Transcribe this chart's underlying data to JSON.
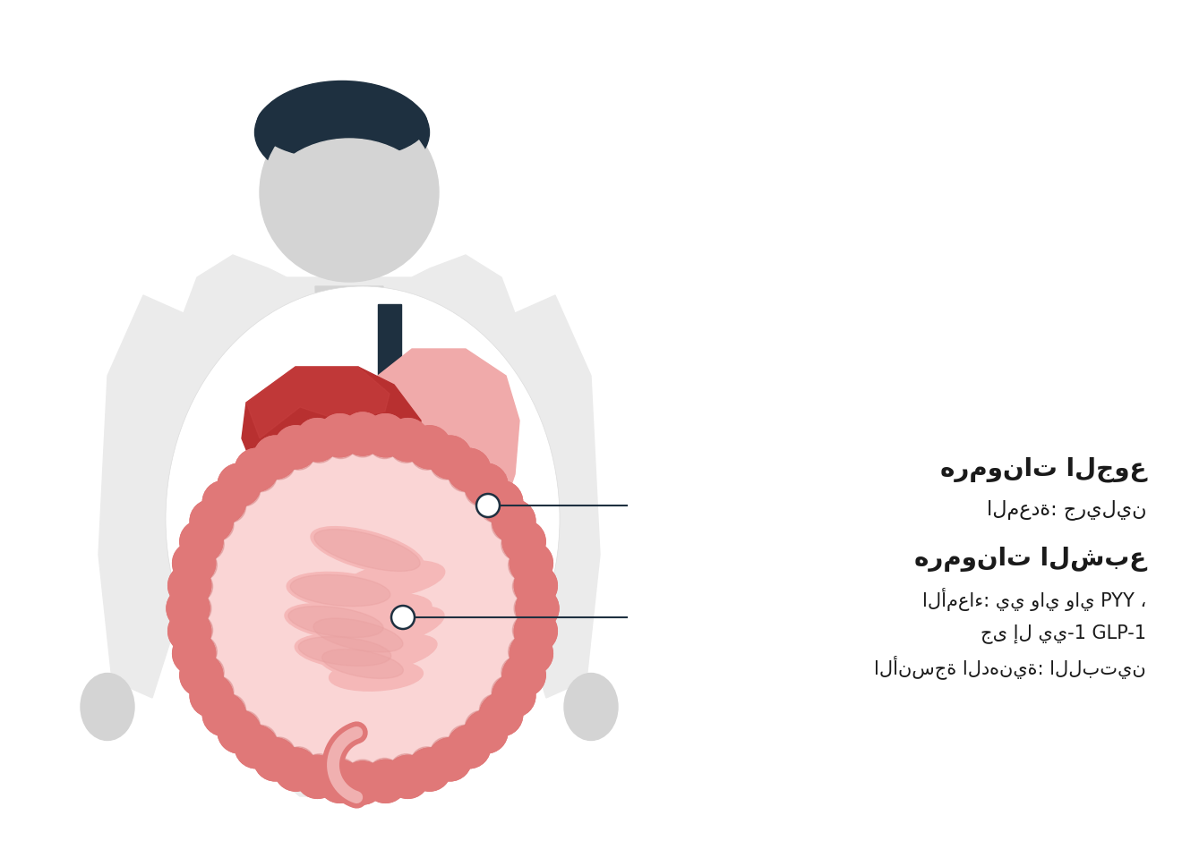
{
  "bg_color": "#ffffff",
  "body_color": "#d4d4d4",
  "hair_color": "#1e3040",
  "shirt_color": "#ebebeb",
  "stomach_color": "#f0aaaa",
  "stomach_dark": "#e08888",
  "liver_color": "#b83030",
  "liver_mid": "#c84040",
  "intestine_outer_color": "#e07878",
  "intestine_inner_color": "#f5b8b8",
  "intestine_bg": "#fad5d5",
  "esophagus_color": "#1e3040",
  "gallbladder_color": "#aaccd8",
  "pancreas_color": "#b8b0a0",
  "circle_color": "#1e3040",
  "line_color": "#1e3040",
  "text_color": "#1a1a1a",
  "label1_title": "هرمونات الجوع",
  "label1_sub": "المعدة: جريلين",
  "label2_title": "هرمونات الشبع",
  "label2_line1": "الأمعاء: يي واي واي PYY ،",
  "label2_line2": "جى إل يي-1 GLP-1",
  "label2_line3": "الأنسجة الدهنية: اللبتين"
}
